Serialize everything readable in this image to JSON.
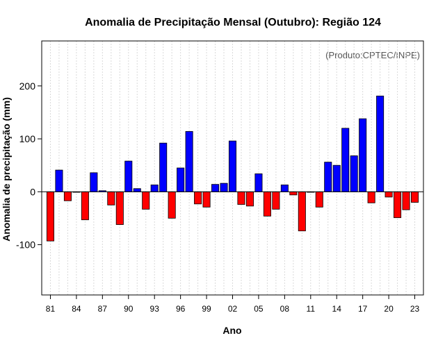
{
  "chart_data": {
    "type": "bar",
    "title": "Anomalia de Precipitação Mensal (Outubro): Região 124",
    "xlabel": "Ano",
    "ylabel": "Anomalia de precipitação (mm)",
    "annotation": "(Produto:CPTEC/INPE)",
    "ylim": [
      -195,
      285
    ],
    "y_ticks": [
      -100,
      0,
      100,
      200
    ],
    "x_tick_labels": [
      "81",
      "84",
      "87",
      "90",
      "93",
      "96",
      "99",
      "02",
      "05",
      "08",
      "11",
      "14",
      "17",
      "20",
      "23"
    ],
    "categories": [
      "1981",
      "1982",
      "1983",
      "1984",
      "1985",
      "1986",
      "1987",
      "1988",
      "1989",
      "1990",
      "1991",
      "1992",
      "1993",
      "1994",
      "1995",
      "1996",
      "1997",
      "1998",
      "1999",
      "2000",
      "2001",
      "2002",
      "2003",
      "2004",
      "2005",
      "2006",
      "2007",
      "2008",
      "2009",
      "2010",
      "2011",
      "2012",
      "2013",
      "2014",
      "2015",
      "2016",
      "2017",
      "2018",
      "2019",
      "2020",
      "2021",
      "2022",
      "2023"
    ],
    "values": [
      -93,
      41,
      -17,
      -1,
      -53,
      36,
      2,
      -25,
      -62,
      58,
      6,
      -33,
      13,
      92,
      -50,
      45,
      114,
      -23,
      -29,
      14,
      16,
      96,
      -24,
      -27,
      34,
      -46,
      -33,
      13,
      -6,
      -74,
      -1,
      -29,
      56,
      50,
      120,
      68,
      138,
      -21,
      181,
      -10,
      -49,
      -34,
      -20
    ],
    "colors": {
      "positive": "#0000ff",
      "negative": "#ff0000",
      "grid": "#d9d9d9"
    },
    "grid": true
  }
}
